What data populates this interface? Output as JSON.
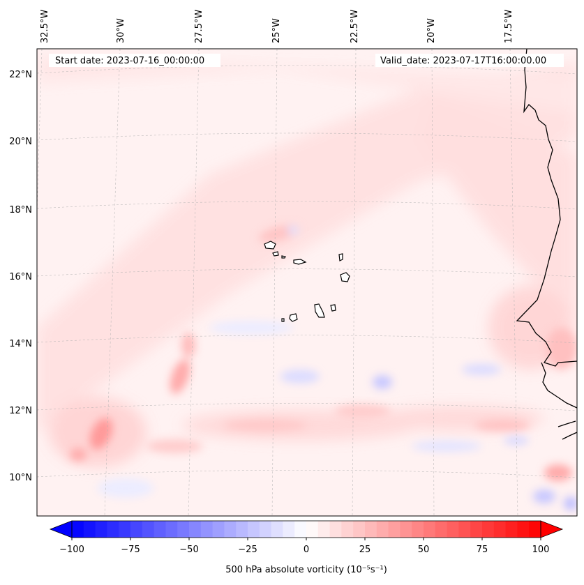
{
  "map": {
    "start_label": "Start date: 2023-07-16_00:00:00",
    "valid_label": "Valid_date: 2023-07-17T16:00:00.00",
    "lon_ticks": [
      "32.5°W",
      "30°W",
      "27.5°W",
      "25°W",
      "22.5°W",
      "20°W",
      "17.5°W"
    ],
    "lat_ticks": [
      "22°N",
      "20°N",
      "18°N",
      "16°N",
      "14°N",
      "12°N",
      "10°N"
    ],
    "field": "500 hPa absolute vorticity"
  },
  "colorbar": {
    "label": "500 hPa absolute vorticity (10⁻⁵s⁻¹)",
    "ticks": [
      "−100",
      "−75",
      "−50",
      "−25",
      "0",
      "25",
      "50",
      "75",
      "100"
    ],
    "min": -100,
    "max": 100,
    "low_color": "#0000ff",
    "mid_color": "#ffffff",
    "high_color": "#ff0000"
  }
}
